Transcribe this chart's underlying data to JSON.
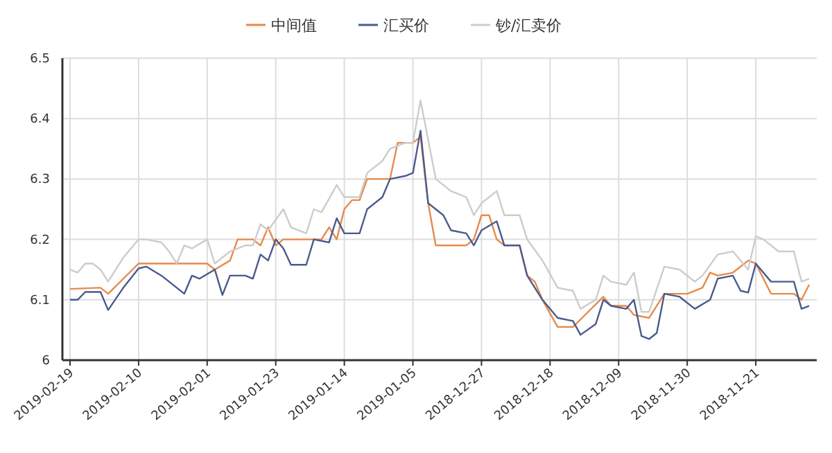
{
  "chart_data": {
    "type": "line",
    "legend": "top",
    "grid": true,
    "xlim": [
      "2019-02-20",
      "2018-11-13"
    ],
    "xticks": [
      "2019-02-19",
      "2019-02-10",
      "2019-02-01",
      "2019-01-23",
      "2019-01-14",
      "2019-01-05",
      "2018-12-27",
      "2018-12-18",
      "2018-12-09",
      "2018-11-30",
      "2018-11-21"
    ],
    "ylim": [
      6,
      6.5
    ],
    "yticks": [
      6,
      6.1,
      6.2,
      6.3,
      6.4,
      6.5
    ],
    "series": [
      {
        "name": "中间值",
        "color": "#e8894a",
        "x": [
          "2019-02-19",
          "2019-02-15",
          "2019-02-14",
          "2019-02-10",
          "2019-02-01",
          "2019-01-31",
          "2019-01-29",
          "2019-01-28",
          "2019-01-26",
          "2019-01-25",
          "2019-01-24",
          "2019-01-23",
          "2019-01-22",
          "2019-01-17",
          "2019-01-16",
          "2019-01-15",
          "2019-01-14",
          "2019-01-13",
          "2019-01-12",
          "2019-01-11",
          "2019-01-08",
          "2019-01-07",
          "2019-01-05",
          "2019-01-04",
          "2019-01-03",
          "2019-01-02",
          "2018-12-29",
          "2018-12-28",
          "2018-12-27",
          "2018-12-26",
          "2018-12-25",
          "2018-12-24",
          "2018-12-22",
          "2018-12-21",
          "2018-12-20",
          "2018-12-19",
          "2018-12-17",
          "2018-12-15",
          "2018-12-13",
          "2018-12-11",
          "2018-12-10",
          "2018-12-08",
          "2018-12-07",
          "2018-12-05",
          "2018-12-03",
          "2018-12-01",
          "2018-11-30",
          "2018-11-28",
          "2018-11-27",
          "2018-11-26",
          "2018-11-24",
          "2018-11-22",
          "2018-11-21",
          "2018-11-19",
          "2018-11-16",
          "2018-11-15",
          "2018-11-14"
        ],
        "values": [
          6.118,
          6.12,
          6.11,
          6.16,
          6.16,
          6.15,
          6.165,
          6.2,
          6.2,
          6.19,
          6.22,
          6.19,
          6.2,
          6.2,
          6.22,
          6.2,
          6.25,
          6.265,
          6.265,
          6.3,
          6.3,
          6.36,
          6.36,
          6.37,
          6.26,
          6.19,
          6.19,
          6.2,
          6.24,
          6.24,
          6.2,
          6.19,
          6.19,
          6.14,
          6.13,
          6.1,
          6.055,
          6.055,
          6.08,
          6.105,
          6.09,
          6.09,
          6.075,
          6.07,
          6.11,
          6.11,
          6.11,
          6.12,
          6.145,
          6.14,
          6.145,
          6.165,
          6.16,
          6.11,
          6.11,
          6.1,
          6.125
        ]
      },
      {
        "name": "汇买价",
        "color": "#4a5a8c",
        "x": [
          "2019-02-19",
          "2019-02-18",
          "2019-02-17",
          "2019-02-15",
          "2019-02-14",
          "2019-02-12",
          "2019-02-10",
          "2019-02-09",
          "2019-02-07",
          "2019-02-04",
          "2019-02-03",
          "2019-02-02",
          "2019-01-31",
          "2019-01-30",
          "2019-01-29",
          "2019-01-27",
          "2019-01-26",
          "2019-01-25",
          "2019-01-24",
          "2019-01-23",
          "2019-01-22",
          "2019-01-21",
          "2019-01-19",
          "2019-01-18",
          "2019-01-16",
          "2019-01-15",
          "2019-01-14",
          "2019-01-12",
          "2019-01-11",
          "2019-01-09",
          "2019-01-08",
          "2019-01-06",
          "2019-01-05",
          "2019-01-04",
          "2019-01-03",
          "2019-01-01",
          "2018-12-31",
          "2018-12-29",
          "2018-12-28",
          "2018-12-27",
          "2018-12-25",
          "2018-12-24",
          "2018-12-22",
          "2018-12-21",
          "2018-12-19",
          "2018-12-17",
          "2018-12-15",
          "2018-12-14",
          "2018-12-12",
          "2018-12-11",
          "2018-12-10",
          "2018-12-08",
          "2018-12-07",
          "2018-12-06",
          "2018-12-05",
          "2018-12-04",
          "2018-12-03",
          "2018-12-01",
          "2018-11-29",
          "2018-11-27",
          "2018-11-26",
          "2018-11-24",
          "2018-11-23",
          "2018-11-22",
          "2018-11-21",
          "2018-11-19",
          "2018-11-16",
          "2018-11-15",
          "2018-11-14"
        ],
        "values": [
          6.1,
          6.1,
          6.113,
          6.113,
          6.083,
          6.12,
          6.152,
          6.155,
          6.14,
          6.11,
          6.14,
          6.135,
          6.15,
          6.108,
          6.14,
          6.14,
          6.135,
          6.175,
          6.165,
          6.2,
          6.185,
          6.158,
          6.158,
          6.2,
          6.195,
          6.235,
          6.21,
          6.21,
          6.25,
          6.27,
          6.3,
          6.305,
          6.31,
          6.38,
          6.26,
          6.24,
          6.215,
          6.21,
          6.19,
          6.215,
          6.23,
          6.19,
          6.19,
          6.14,
          6.1,
          6.07,
          6.065,
          6.042,
          6.06,
          6.1,
          6.09,
          6.085,
          6.1,
          6.04,
          6.035,
          6.045,
          6.11,
          6.105,
          6.085,
          6.1,
          6.135,
          6.14,
          6.115,
          6.112,
          6.16,
          6.13,
          6.13,
          6.085,
          6.09
        ]
      },
      {
        "name": "钞/汇卖价",
        "color": "#cccccc",
        "x": [
          "2019-02-19",
          "2019-02-18",
          "2019-02-17",
          "2019-02-16",
          "2019-02-15",
          "2019-02-14",
          "2019-02-12",
          "2019-02-10",
          "2019-02-09",
          "2019-02-07",
          "2019-02-06",
          "2019-02-05",
          "2019-02-04",
          "2019-02-03",
          "2019-02-01",
          "2019-01-31",
          "2019-01-29",
          "2019-01-27",
          "2019-01-26",
          "2019-01-25",
          "2019-01-24",
          "2019-01-22",
          "2019-01-21",
          "2019-01-19",
          "2019-01-18",
          "2019-01-17",
          "2019-01-15",
          "2019-01-14",
          "2019-01-12",
          "2019-01-11",
          "2019-01-09",
          "2019-01-08",
          "2019-01-06",
          "2019-01-05",
          "2019-01-04",
          "2019-01-02",
          "2018-12-31",
          "2018-12-29",
          "2018-12-28",
          "2018-12-27",
          "2018-12-25",
          "2018-12-24",
          "2018-12-22",
          "2018-12-21",
          "2018-12-19",
          "2018-12-17",
          "2018-12-15",
          "2018-12-14",
          "2018-12-12",
          "2018-12-11",
          "2018-12-10",
          "2018-12-08",
          "2018-12-07",
          "2018-12-06",
          "2018-12-05",
          "2018-12-03",
          "2018-12-01",
          "2018-11-29",
          "2018-11-28",
          "2018-11-26",
          "2018-11-24",
          "2018-11-22",
          "2018-11-21",
          "2018-11-20",
          "2018-11-18",
          "2018-11-16",
          "2018-11-15",
          "2018-11-14"
        ],
        "values": [
          6.15,
          6.145,
          6.16,
          6.16,
          6.15,
          6.13,
          6.17,
          6.2,
          6.2,
          6.195,
          6.18,
          6.16,
          6.19,
          6.185,
          6.2,
          6.16,
          6.18,
          6.19,
          6.19,
          6.225,
          6.215,
          6.25,
          6.22,
          6.21,
          6.25,
          6.245,
          6.29,
          6.27,
          6.27,
          6.31,
          6.33,
          6.35,
          6.36,
          6.36,
          6.43,
          6.3,
          6.28,
          6.27,
          6.24,
          6.26,
          6.28,
          6.24,
          6.24,
          6.2,
          6.165,
          6.12,
          6.115,
          6.085,
          6.1,
          6.14,
          6.13,
          6.125,
          6.145,
          6.08,
          6.08,
          6.155,
          6.15,
          6.13,
          6.14,
          6.175,
          6.18,
          6.15,
          6.205,
          6.2,
          6.18,
          6.18,
          6.13,
          6.135
        ]
      }
    ]
  }
}
